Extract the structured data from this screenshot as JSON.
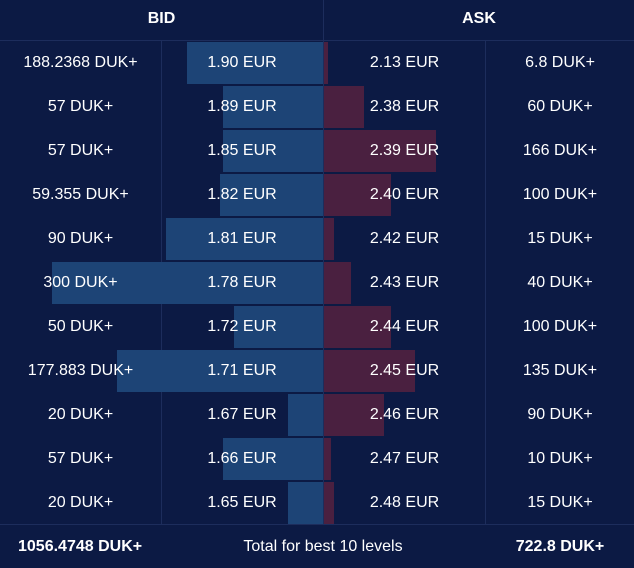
{
  "header": {
    "bid_label": "BID",
    "ask_label": "ASK"
  },
  "colors": {
    "background": "#0c1a44",
    "bid_bar": "#1d4476",
    "ask_bar": "#4a2040",
    "text": "#ffffff"
  },
  "rows": [
    {
      "bid_qty": "188.2368 DUK+",
      "bid_price": "1.90 EUR",
      "ask_price": "2.13 EUR",
      "ask_qty": "6.8 DUK+",
      "bid_depth": 0.5,
      "ask_depth": 0.04
    },
    {
      "bid_qty": "57 DUK+",
      "bid_price": "1.89 EUR",
      "ask_price": "2.38 EUR",
      "ask_qty": "60 DUK+",
      "bid_depth": 0.37,
      "ask_depth": 0.36
    },
    {
      "bid_qty": "57 DUK+",
      "bid_price": "1.85 EUR",
      "ask_price": "2.39 EUR",
      "ask_qty": "166 DUK+",
      "bid_depth": 0.37,
      "ask_depth": 1.0
    },
    {
      "bid_qty": "59.355 DUK+",
      "bid_price": "1.82 EUR",
      "ask_price": "2.40 EUR",
      "ask_qty": "100 DUK+",
      "bid_depth": 0.38,
      "ask_depth": 0.6
    },
    {
      "bid_qty": "90 DUK+",
      "bid_price": "1.81 EUR",
      "ask_price": "2.42 EUR",
      "ask_qty": "15 DUK+",
      "bid_depth": 0.58,
      "ask_depth": 0.09
    },
    {
      "bid_qty": "300 DUK+",
      "bid_price": "1.78 EUR",
      "ask_price": "2.43 EUR",
      "ask_qty": "40 DUK+",
      "bid_depth": 1.0,
      "ask_depth": 0.24
    },
    {
      "bid_qty": "50 DUK+",
      "bid_price": "1.72 EUR",
      "ask_price": "2.44 EUR",
      "ask_qty": "100 DUK+",
      "bid_depth": 0.33,
      "ask_depth": 0.6
    },
    {
      "bid_qty": "177.883 DUK+",
      "bid_price": "1.71 EUR",
      "ask_price": "2.45 EUR",
      "ask_qty": "135 DUK+",
      "bid_depth": 0.76,
      "ask_depth": 0.81
    },
    {
      "bid_qty": "20 DUK+",
      "bid_price": "1.67 EUR",
      "ask_price": "2.46 EUR",
      "ask_qty": "90 DUK+",
      "bid_depth": 0.13,
      "ask_depth": 0.54
    },
    {
      "bid_qty": "57 DUK+",
      "bid_price": "1.66 EUR",
      "ask_price": "2.47 EUR",
      "ask_qty": "10 DUK+",
      "bid_depth": 0.37,
      "ask_depth": 0.06
    },
    {
      "bid_qty": "20 DUK+",
      "bid_price": "1.65 EUR",
      "ask_price": "2.48 EUR",
      "ask_qty": "15 DUK+",
      "bid_depth": 0.13,
      "ask_depth": 0.09
    }
  ],
  "footer": {
    "bid_total": "1056.4748 DUK+",
    "label": "Total for best 10 levels",
    "ask_total": "722.8 DUK+"
  }
}
